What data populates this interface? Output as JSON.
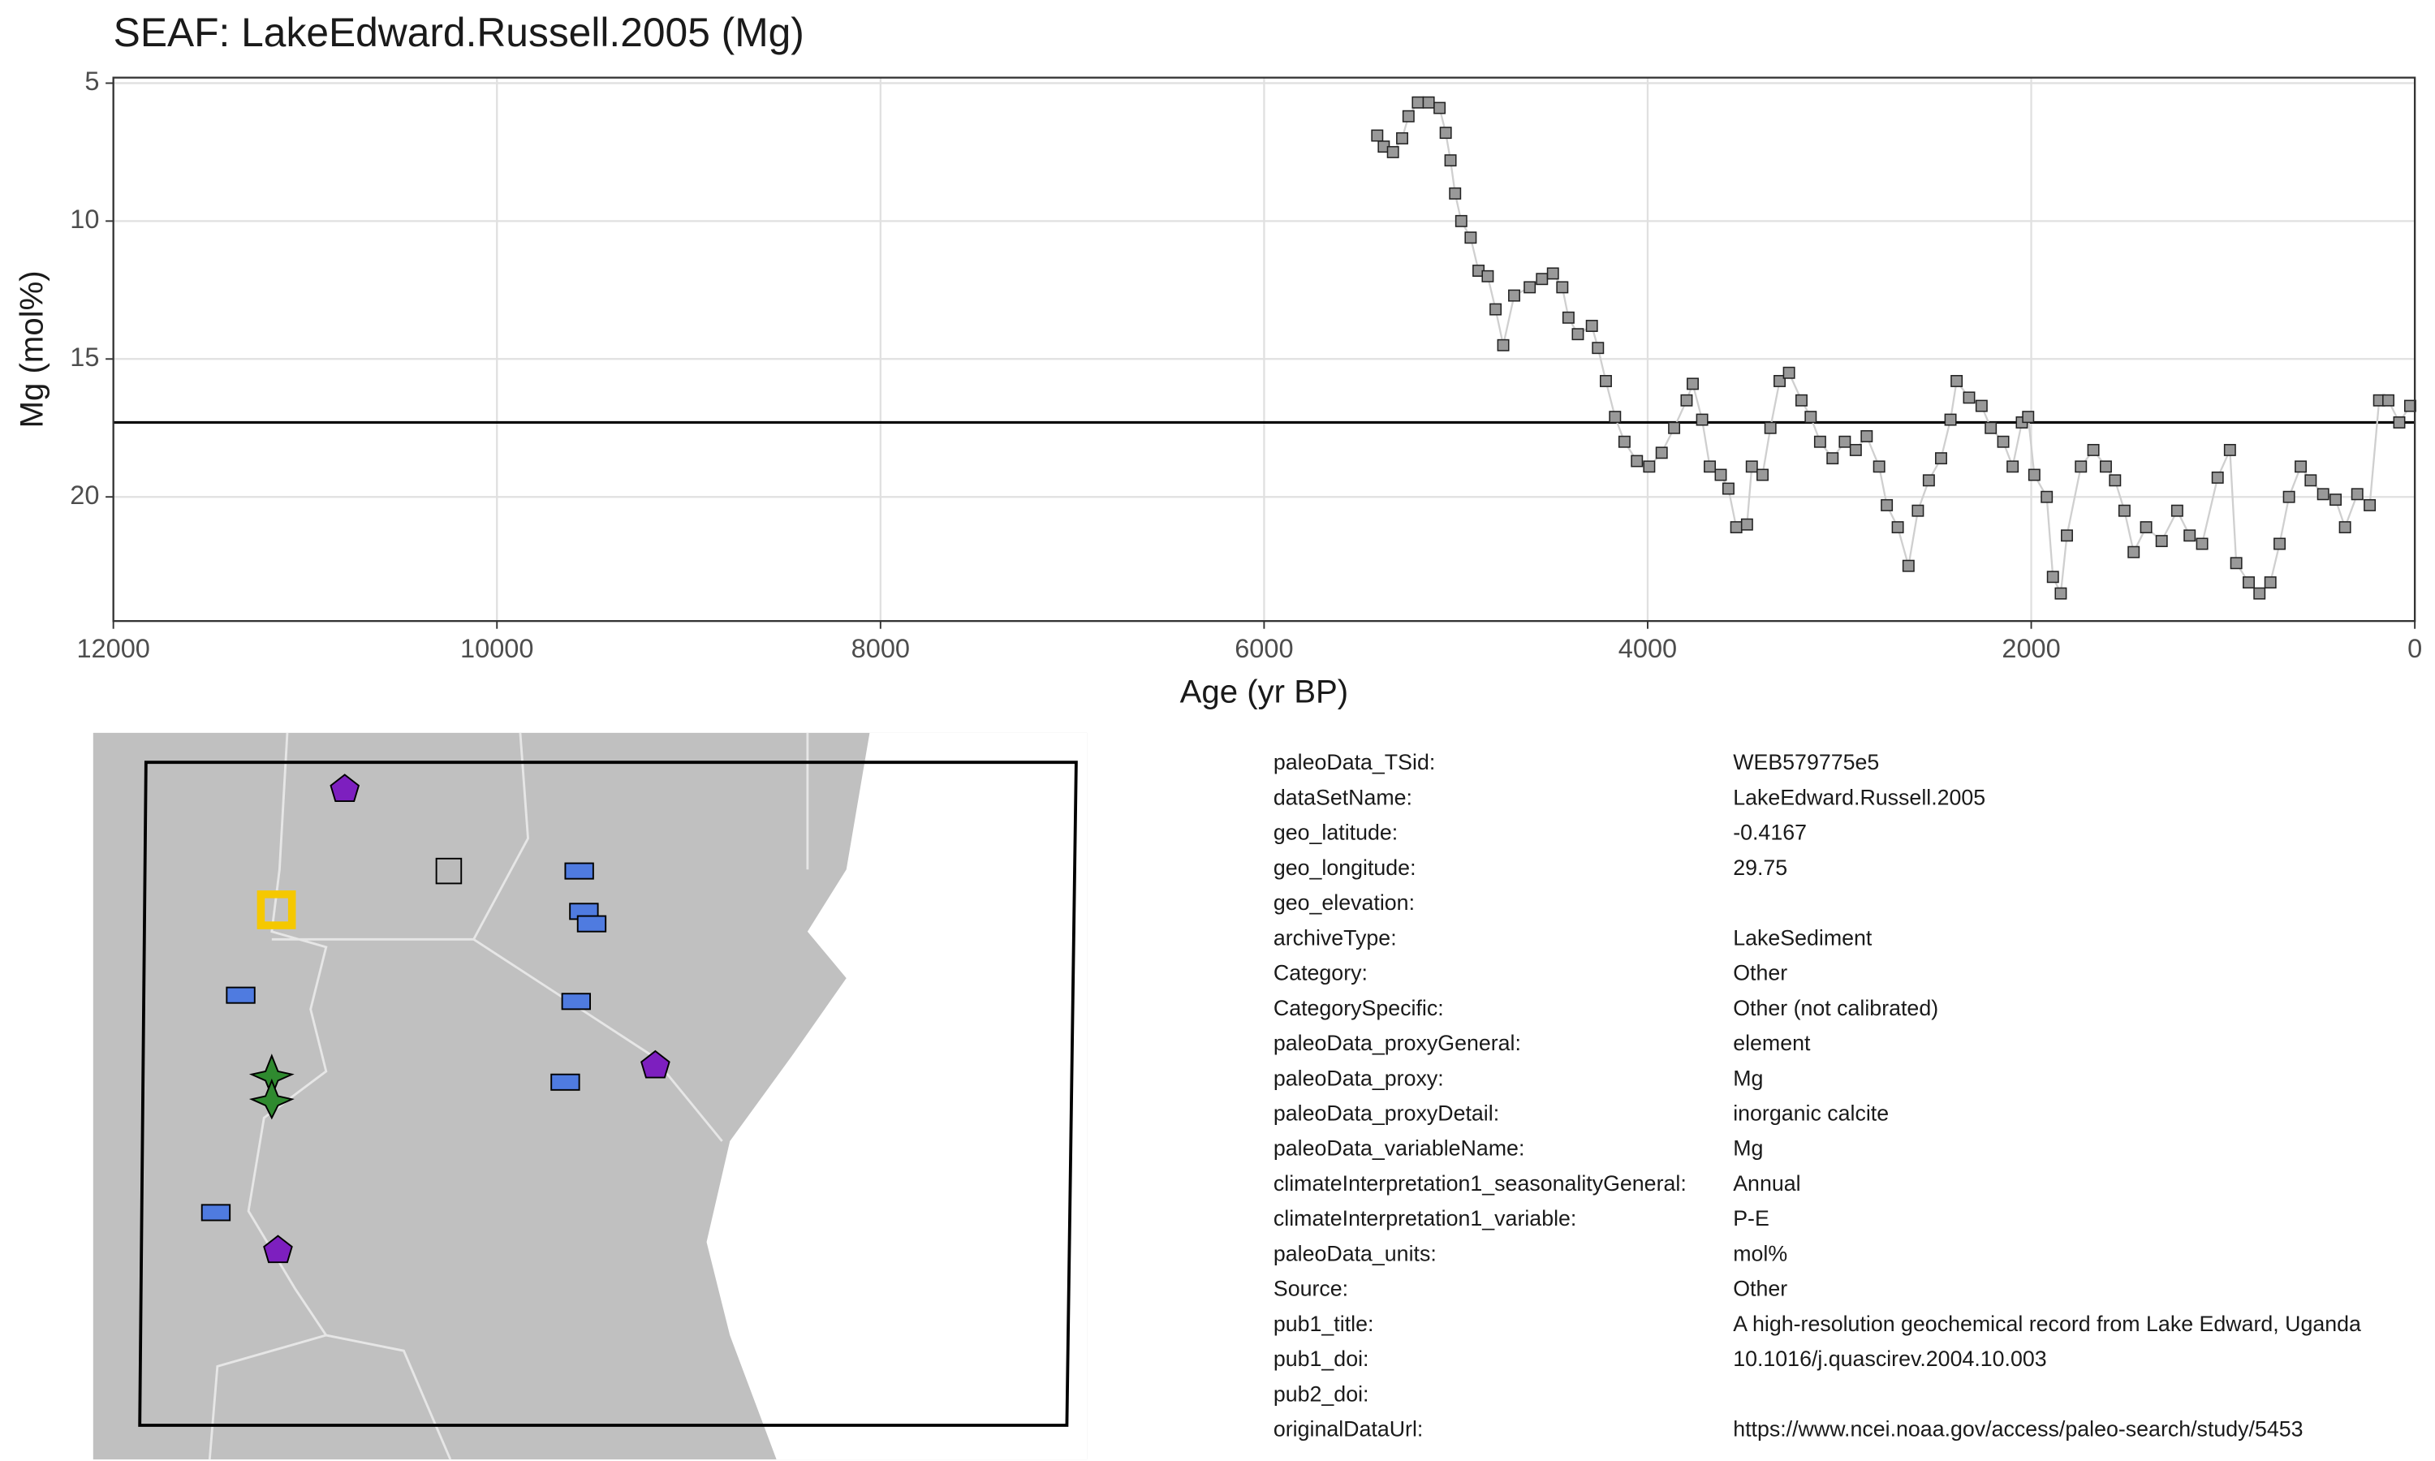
{
  "chart_data": {
    "type": "line",
    "title": "SEAF: LakeEdward.Russell.2005 (Mg)",
    "x_label": "Age (yr BP)",
    "y_label": "Mg (mol%)",
    "xlim": [
      12000,
      0
    ],
    "xticks": [
      12000,
      10000,
      8000,
      6000,
      4000,
      2000,
      0
    ],
    "ylim": [
      4.8,
      24.5
    ],
    "yticks": [
      5,
      10,
      15,
      20
    ],
    "grid": true,
    "hline": 17.3,
    "color": "#999999",
    "x": [
      5410,
      5376,
      5328,
      5280,
      5247,
      5198,
      5142,
      5085,
      5053,
      5028,
      5004,
      4972,
      4923,
      4882,
      4834,
      4793,
      4753,
      4696,
      4615,
      4551,
      4494,
      4445,
      4413,
      4364,
      4291,
      4259,
      4218,
      4170,
      4121,
      4056,
      3992,
      3927,
      3862,
      3797,
      3765,
      3716,
      3676,
      3619,
      3579,
      3538,
      3482,
      3457,
      3401,
      3360,
      3312,
      3263,
      3198,
      3150,
      3101,
      3036,
      2972,
      2915,
      2858,
      2793,
      2753,
      2696,
      2640,
      2591,
      2534,
      2470,
      2421,
      2389,
      2324,
      2259,
      2211,
      2146,
      2097,
      2049,
      2016,
      1984,
      1919,
      1887,
      1846,
      1814,
      1741,
      1676,
      1611,
      1563,
      1514,
      1466,
      1401,
      1320,
      1239,
      1174,
      1109,
      1028,
      964,
      931,
      866,
      810,
      753,
      705,
      656,
      595,
      543,
      478,
      413,
      364,
      300,
      235,
      186,
      138,
      81,
      24
    ],
    "values": [
      6.9,
      7.3,
      7.5,
      7.0,
      6.2,
      5.7,
      5.7,
      5.9,
      6.8,
      7.8,
      9.0,
      10.0,
      10.6,
      11.8,
      12.0,
      13.2,
      14.5,
      12.7,
      12.4,
      12.1,
      11.9,
      12.4,
      13.5,
      14.1,
      13.8,
      14.6,
      15.8,
      17.1,
      18.0,
      18.7,
      18.9,
      18.4,
      17.5,
      16.5,
      15.9,
      17.2,
      18.9,
      19.2,
      19.7,
      21.1,
      21.0,
      18.9,
      19.2,
      17.5,
      15.8,
      15.5,
      16.5,
      17.1,
      18.0,
      18.6,
      18.0,
      18.3,
      17.8,
      18.9,
      20.3,
      21.1,
      22.5,
      20.5,
      19.4,
      18.6,
      17.2,
      15.8,
      16.4,
      16.7,
      17.5,
      18.0,
      18.9,
      17.3,
      17.1,
      19.2,
      20.0,
      22.9,
      23.5,
      21.4,
      18.9,
      18.3,
      18.9,
      19.4,
      20.5,
      22.0,
      21.1,
      21.6,
      20.5,
      21.4,
      21.7,
      19.3,
      18.3,
      22.4,
      23.1,
      23.5,
      23.1,
      21.7,
      20.0,
      18.9,
      19.4,
      19.9,
      20.1,
      21.1,
      19.9,
      20.3,
      16.5,
      16.5,
      17.3,
      16.7
    ]
  },
  "metadata": [
    [
      "paleoData_TSid:",
      "WEB579775e5"
    ],
    [
      "dataSetName:",
      "LakeEdward.Russell.2005"
    ],
    [
      "geo_latitude:",
      "-0.4167"
    ],
    [
      "geo_longitude:",
      "29.75"
    ],
    [
      "geo_elevation:"
    ],
    [
      "archiveType:",
      "LakeSediment"
    ],
    [
      "Category:",
      "Other"
    ],
    [
      "CategorySpecific:",
      "Other (not calibrated)"
    ],
    [
      "paleoData_proxyGeneral:",
      "element"
    ],
    [
      "paleoData_proxy:",
      "Mg"
    ],
    [
      "paleoData_proxyDetail:",
      "inorganic calcite"
    ],
    [
      "paleoData_variableName:",
      "Mg"
    ],
    [
      "climateInterpretation1_seasonalityGeneral:",
      "Annual"
    ],
    [
      "climateInterpretation1_variable:",
      "P-E"
    ],
    [
      "paleoData_units:",
      "mol%"
    ],
    [
      "Source:",
      "Other"
    ],
    [
      "pub1_title:",
      "A high-resolution geochemical record from Lake Edward, Uganda"
    ],
    [
      "pub1_doi:",
      "10.1016/j.quascirev.2004.10.003"
    ],
    [
      "pub2_doi:"
    ],
    [
      "originalDataUrl:",
      "https://www.ncei.noaa.gov/access/paleo-search/study/5453"
    ]
  ]
}
